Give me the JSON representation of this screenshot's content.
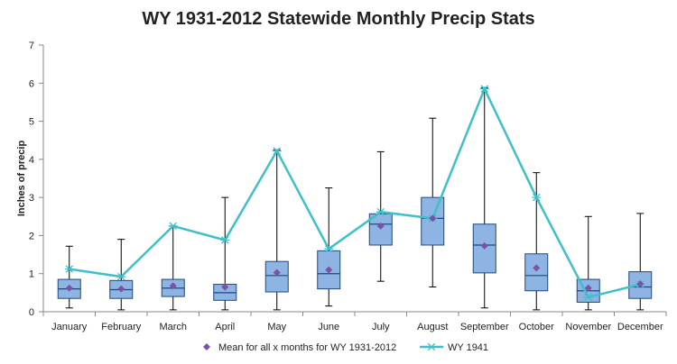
{
  "chart_data": {
    "type": "boxplot",
    "title": "WY 1931-2012 Statewide Monthly Precip Stats",
    "xlabel": "",
    "ylabel": "Inches of precip",
    "ylim": [
      0,
      7
    ],
    "yticks": [
      0,
      1,
      2,
      3,
      4,
      5,
      6,
      7
    ],
    "grid": false,
    "legend_position": "bottom",
    "categories": [
      "January",
      "February",
      "March",
      "April",
      "May",
      "June",
      "July",
      "August",
      "September",
      "October",
      "November",
      "December"
    ],
    "boxes": [
      {
        "min": 0.1,
        "q1": 0.35,
        "median": 0.6,
        "q3": 0.85,
        "max": 1.72
      },
      {
        "min": 0.05,
        "q1": 0.35,
        "median": 0.58,
        "q3": 0.82,
        "max": 1.9
      },
      {
        "min": 0.05,
        "q1": 0.4,
        "median": 0.62,
        "q3": 0.85,
        "max": 2.25
      },
      {
        "min": 0.05,
        "q1": 0.3,
        "median": 0.5,
        "q3": 0.72,
        "max": 3.0
      },
      {
        "min": 0.05,
        "q1": 0.52,
        "median": 0.95,
        "q3": 1.32,
        "max": 4.25
      },
      {
        "min": 0.15,
        "q1": 0.6,
        "median": 1.0,
        "q3": 1.6,
        "max": 3.25
      },
      {
        "min": 0.8,
        "q1": 1.75,
        "median": 2.3,
        "q3": 2.57,
        "max": 4.2
      },
      {
        "min": 0.65,
        "q1": 1.75,
        "median": 2.45,
        "q3": 3.0,
        "max": 5.08
      },
      {
        "min": 0.1,
        "q1": 1.02,
        "median": 1.75,
        "q3": 2.3,
        "max": 5.88
      },
      {
        "min": 0.05,
        "q1": 0.55,
        "median": 0.95,
        "q3": 1.52,
        "max": 3.65
      },
      {
        "min": 0.05,
        "q1": 0.25,
        "median": 0.55,
        "q3": 0.85,
        "max": 2.5
      },
      {
        "min": 0.05,
        "q1": 0.35,
        "median": 0.65,
        "q3": 1.05,
        "max": 2.58
      }
    ],
    "series": [
      {
        "name": "Mean for all x months for WY 1931-2012",
        "marker": "diamond",
        "color": "#7b52a8",
        "values": [
          0.62,
          0.6,
          0.68,
          0.65,
          1.03,
          1.1,
          2.25,
          2.45,
          1.73,
          1.15,
          0.62,
          0.73
        ]
      },
      {
        "name": "WY 1941",
        "marker": "star",
        "color": "#3fbfca",
        "values": [
          1.12,
          0.92,
          2.25,
          1.88,
          4.22,
          1.65,
          2.62,
          2.45,
          5.85,
          3.0,
          0.38,
          0.72
        ]
      }
    ],
    "box_fill": "#8eb4e3",
    "box_stroke": "#1f497d"
  }
}
